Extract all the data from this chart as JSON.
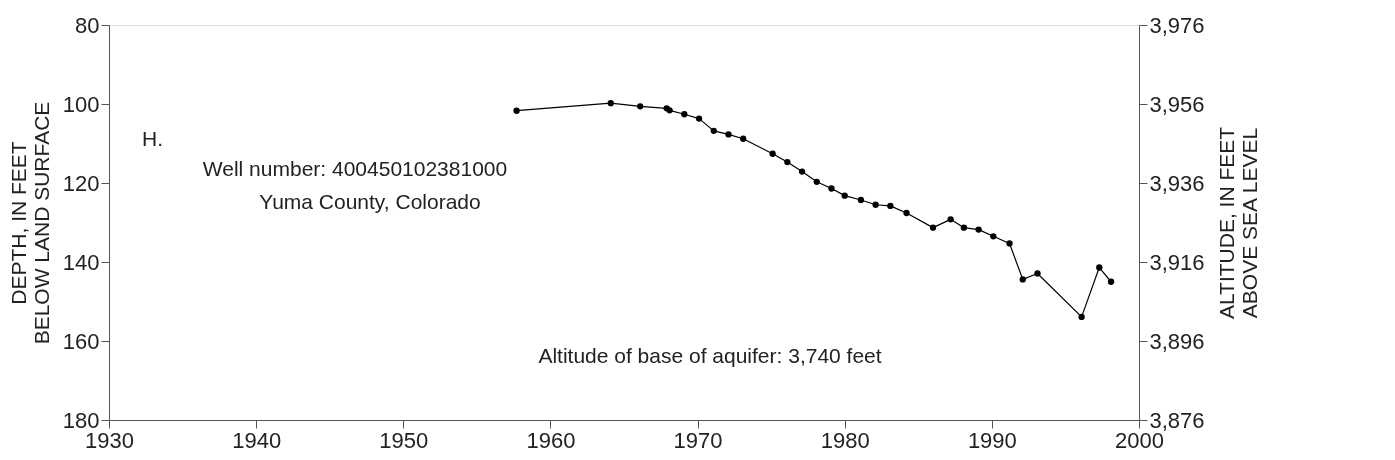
{
  "chart_data": {
    "type": "line",
    "xlabel": null,
    "ylabel": "DEPTH, IN FEET\nBELOW LAND SURFACE",
    "y2label": "ALTITUDE, IN FEET\nABOVE SEA LEVEL",
    "annotations": [
      "H.",
      "Well number: 400450102381000",
      "Yuma County, Colorado",
      "Altitude of base of aquifer: 3,740 feet"
    ],
    "xlim": [
      1930,
      2000
    ],
    "xticks": [
      1930,
      1940,
      1950,
      1960,
      1970,
      1980,
      1990,
      2000
    ],
    "ylim": [
      180,
      80
    ],
    "yticks": [
      80,
      100,
      120,
      140,
      160,
      180
    ],
    "y2lim": [
      3876,
      3976
    ],
    "y2ticks": [
      {
        "value": 3876,
        "label": "3,876"
      },
      {
        "value": 3896,
        "label": "3,896"
      },
      {
        "value": 3916,
        "label": "3,916"
      },
      {
        "value": 3936,
        "label": "3,936"
      },
      {
        "value": 3956,
        "label": "3,956"
      },
      {
        "value": 3976,
        "label": "3,976"
      }
    ],
    "grid": false,
    "marker": "circle",
    "line_style": "solid",
    "series": [
      {
        "color": "#000000",
        "x": [
          1957.7,
          1964.1,
          1966.1,
          1967.9,
          1968.1,
          1969.1,
          1970.1,
          1971.1,
          1972.1,
          1973.1,
          1975.1,
          1976.1,
          1977.1,
          1978.1,
          1979.1,
          1980.0,
          1981.1,
          1982.1,
          1983.1,
          1984.2,
          1986.0,
          1987.2,
          1988.1,
          1989.1,
          1990.1,
          1991.2,
          1992.1,
          1993.1,
          1996.1,
          1997.3,
          1998.1
        ],
        "values": [
          101.7,
          99.8,
          100.6,
          101.1,
          101.6,
          102.6,
          103.7,
          106.8,
          107.7,
          108.8,
          112.6,
          114.7,
          117.1,
          119.7,
          121.4,
          123.2,
          124.3,
          125.5,
          125.8,
          127.6,
          131.3,
          129.2,
          131.3,
          131.8,
          133.5,
          135.3,
          144.4,
          142.9,
          153.9,
          141.4,
          145.0
        ]
      }
    ]
  }
}
